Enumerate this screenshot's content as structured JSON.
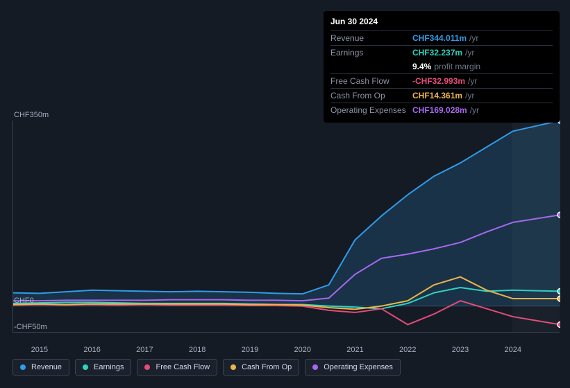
{
  "tooltip": {
    "date": "Jun 30 2024",
    "rows": [
      {
        "label": "Revenue",
        "value": "CHF344.011m",
        "unit": "/yr",
        "color": "#2f9ceb"
      },
      {
        "label": "Earnings",
        "value": "CHF32.237m",
        "unit": "/yr",
        "color": "#2dd4bf"
      },
      {
        "sub": true,
        "pct": "9.4%",
        "lbl": "profit margin"
      },
      {
        "label": "Free Cash Flow",
        "value": "-CHF32.993m",
        "unit": "/yr",
        "color": "#e64b7a"
      },
      {
        "label": "Cash From Op",
        "value": "CHF14.361m",
        "unit": "/yr",
        "color": "#eab54b"
      },
      {
        "label": "Operating Expenses",
        "value": "CHF169.028m",
        "unit": "/yr",
        "color": "#a668f0"
      }
    ]
  },
  "chart": {
    "type": "area-line",
    "background_color": "#151b24",
    "grid_color": "#3a4456",
    "text_color": "#a6b0c3",
    "label_fontsize": 11,
    "ylim": [
      -50,
      350
    ],
    "yticks": [
      {
        "v": 350,
        "label": "CHF350m"
      },
      {
        "v": 0,
        "label": "CHF0"
      },
      {
        "v": -50,
        "label": "-CHF50m"
      }
    ],
    "xlim": [
      2014.5,
      2024.9
    ],
    "xticks": [
      2015,
      2016,
      2017,
      2018,
      2019,
      2020,
      2021,
      2022,
      2023,
      2024
    ],
    "future_from_x": 2024,
    "line_width": 2,
    "area_opacity": 0.18,
    "marker_radius": 4,
    "series": [
      {
        "key": "revenue",
        "label": "Revenue",
        "color": "#2f9ceb",
        "fill": true,
        "points": [
          [
            2014.5,
            25
          ],
          [
            2015,
            24
          ],
          [
            2015.5,
            27
          ],
          [
            2016,
            30
          ],
          [
            2016.5,
            29
          ],
          [
            2017,
            28
          ],
          [
            2017.5,
            27
          ],
          [
            2018,
            28
          ],
          [
            2018.5,
            27
          ],
          [
            2019,
            26
          ],
          [
            2019.5,
            24
          ],
          [
            2020,
            23
          ],
          [
            2020.5,
            40
          ],
          [
            2021,
            125
          ],
          [
            2021.5,
            170
          ],
          [
            2022,
            210
          ],
          [
            2022.5,
            245
          ],
          [
            2023,
            270
          ],
          [
            2023.5,
            300
          ],
          [
            2024,
            330
          ],
          [
            2024.9,
            350
          ]
        ]
      },
      {
        "key": "earnings",
        "label": "Earnings",
        "color": "#2dd4bf",
        "fill": false,
        "points": [
          [
            2014.5,
            5
          ],
          [
            2015,
            6
          ],
          [
            2015.5,
            7
          ],
          [
            2016,
            7
          ],
          [
            2016.5,
            6
          ],
          [
            2017,
            5
          ],
          [
            2017.5,
            5
          ],
          [
            2018,
            5
          ],
          [
            2018.5,
            5
          ],
          [
            2019,
            4
          ],
          [
            2019.5,
            3
          ],
          [
            2020,
            3
          ],
          [
            2020.5,
            0
          ],
          [
            2021,
            -2
          ],
          [
            2021.5,
            -5
          ],
          [
            2022,
            5
          ],
          [
            2022.5,
            25
          ],
          [
            2023,
            35
          ],
          [
            2023.5,
            28
          ],
          [
            2024,
            30
          ],
          [
            2024.9,
            28
          ]
        ]
      },
      {
        "key": "fcf",
        "label": "Free Cash Flow",
        "color": "#e64b7a",
        "fill": false,
        "points": [
          [
            2014.5,
            2
          ],
          [
            2015,
            3
          ],
          [
            2015.5,
            2
          ],
          [
            2016,
            3
          ],
          [
            2016.5,
            2
          ],
          [
            2017,
            3
          ],
          [
            2017.5,
            2
          ],
          [
            2018,
            2
          ],
          [
            2018.5,
            2
          ],
          [
            2019,
            1
          ],
          [
            2019.5,
            1
          ],
          [
            2020,
            0
          ],
          [
            2020.5,
            -8
          ],
          [
            2021,
            -12
          ],
          [
            2021.5,
            -5
          ],
          [
            2022,
            -35
          ],
          [
            2022.5,
            -15
          ],
          [
            2023,
            10
          ],
          [
            2023.5,
            -5
          ],
          [
            2024,
            -20
          ],
          [
            2024.9,
            -35
          ]
        ]
      },
      {
        "key": "cfo",
        "label": "Cash From Op",
        "color": "#eab54b",
        "fill": false,
        "points": [
          [
            2014.5,
            3
          ],
          [
            2015,
            4
          ],
          [
            2015.5,
            3
          ],
          [
            2016,
            4
          ],
          [
            2016.5,
            4
          ],
          [
            2017,
            4
          ],
          [
            2017.5,
            4
          ],
          [
            2018,
            4
          ],
          [
            2018.5,
            4
          ],
          [
            2019,
            3
          ],
          [
            2019.5,
            3
          ],
          [
            2020,
            2
          ],
          [
            2020.5,
            -3
          ],
          [
            2021,
            -6
          ],
          [
            2021.5,
            0
          ],
          [
            2022,
            10
          ],
          [
            2022.5,
            40
          ],
          [
            2023,
            55
          ],
          [
            2023.5,
            30
          ],
          [
            2024,
            14
          ],
          [
            2024.9,
            14
          ]
        ]
      },
      {
        "key": "opex",
        "label": "Operating Expenses",
        "color": "#a668f0",
        "fill": false,
        "points": [
          [
            2014.5,
            10
          ],
          [
            2015,
            10
          ],
          [
            2015.5,
            11
          ],
          [
            2016,
            11
          ],
          [
            2016.5,
            11
          ],
          [
            2017,
            11
          ],
          [
            2017.5,
            12
          ],
          [
            2018,
            12
          ],
          [
            2018.5,
            12
          ],
          [
            2019,
            11
          ],
          [
            2019.5,
            11
          ],
          [
            2020,
            10
          ],
          [
            2020.5,
            15
          ],
          [
            2021,
            60
          ],
          [
            2021.5,
            90
          ],
          [
            2022,
            98
          ],
          [
            2022.5,
            108
          ],
          [
            2023,
            120
          ],
          [
            2023.5,
            140
          ],
          [
            2024,
            158
          ],
          [
            2024.9,
            172
          ]
        ]
      }
    ]
  }
}
